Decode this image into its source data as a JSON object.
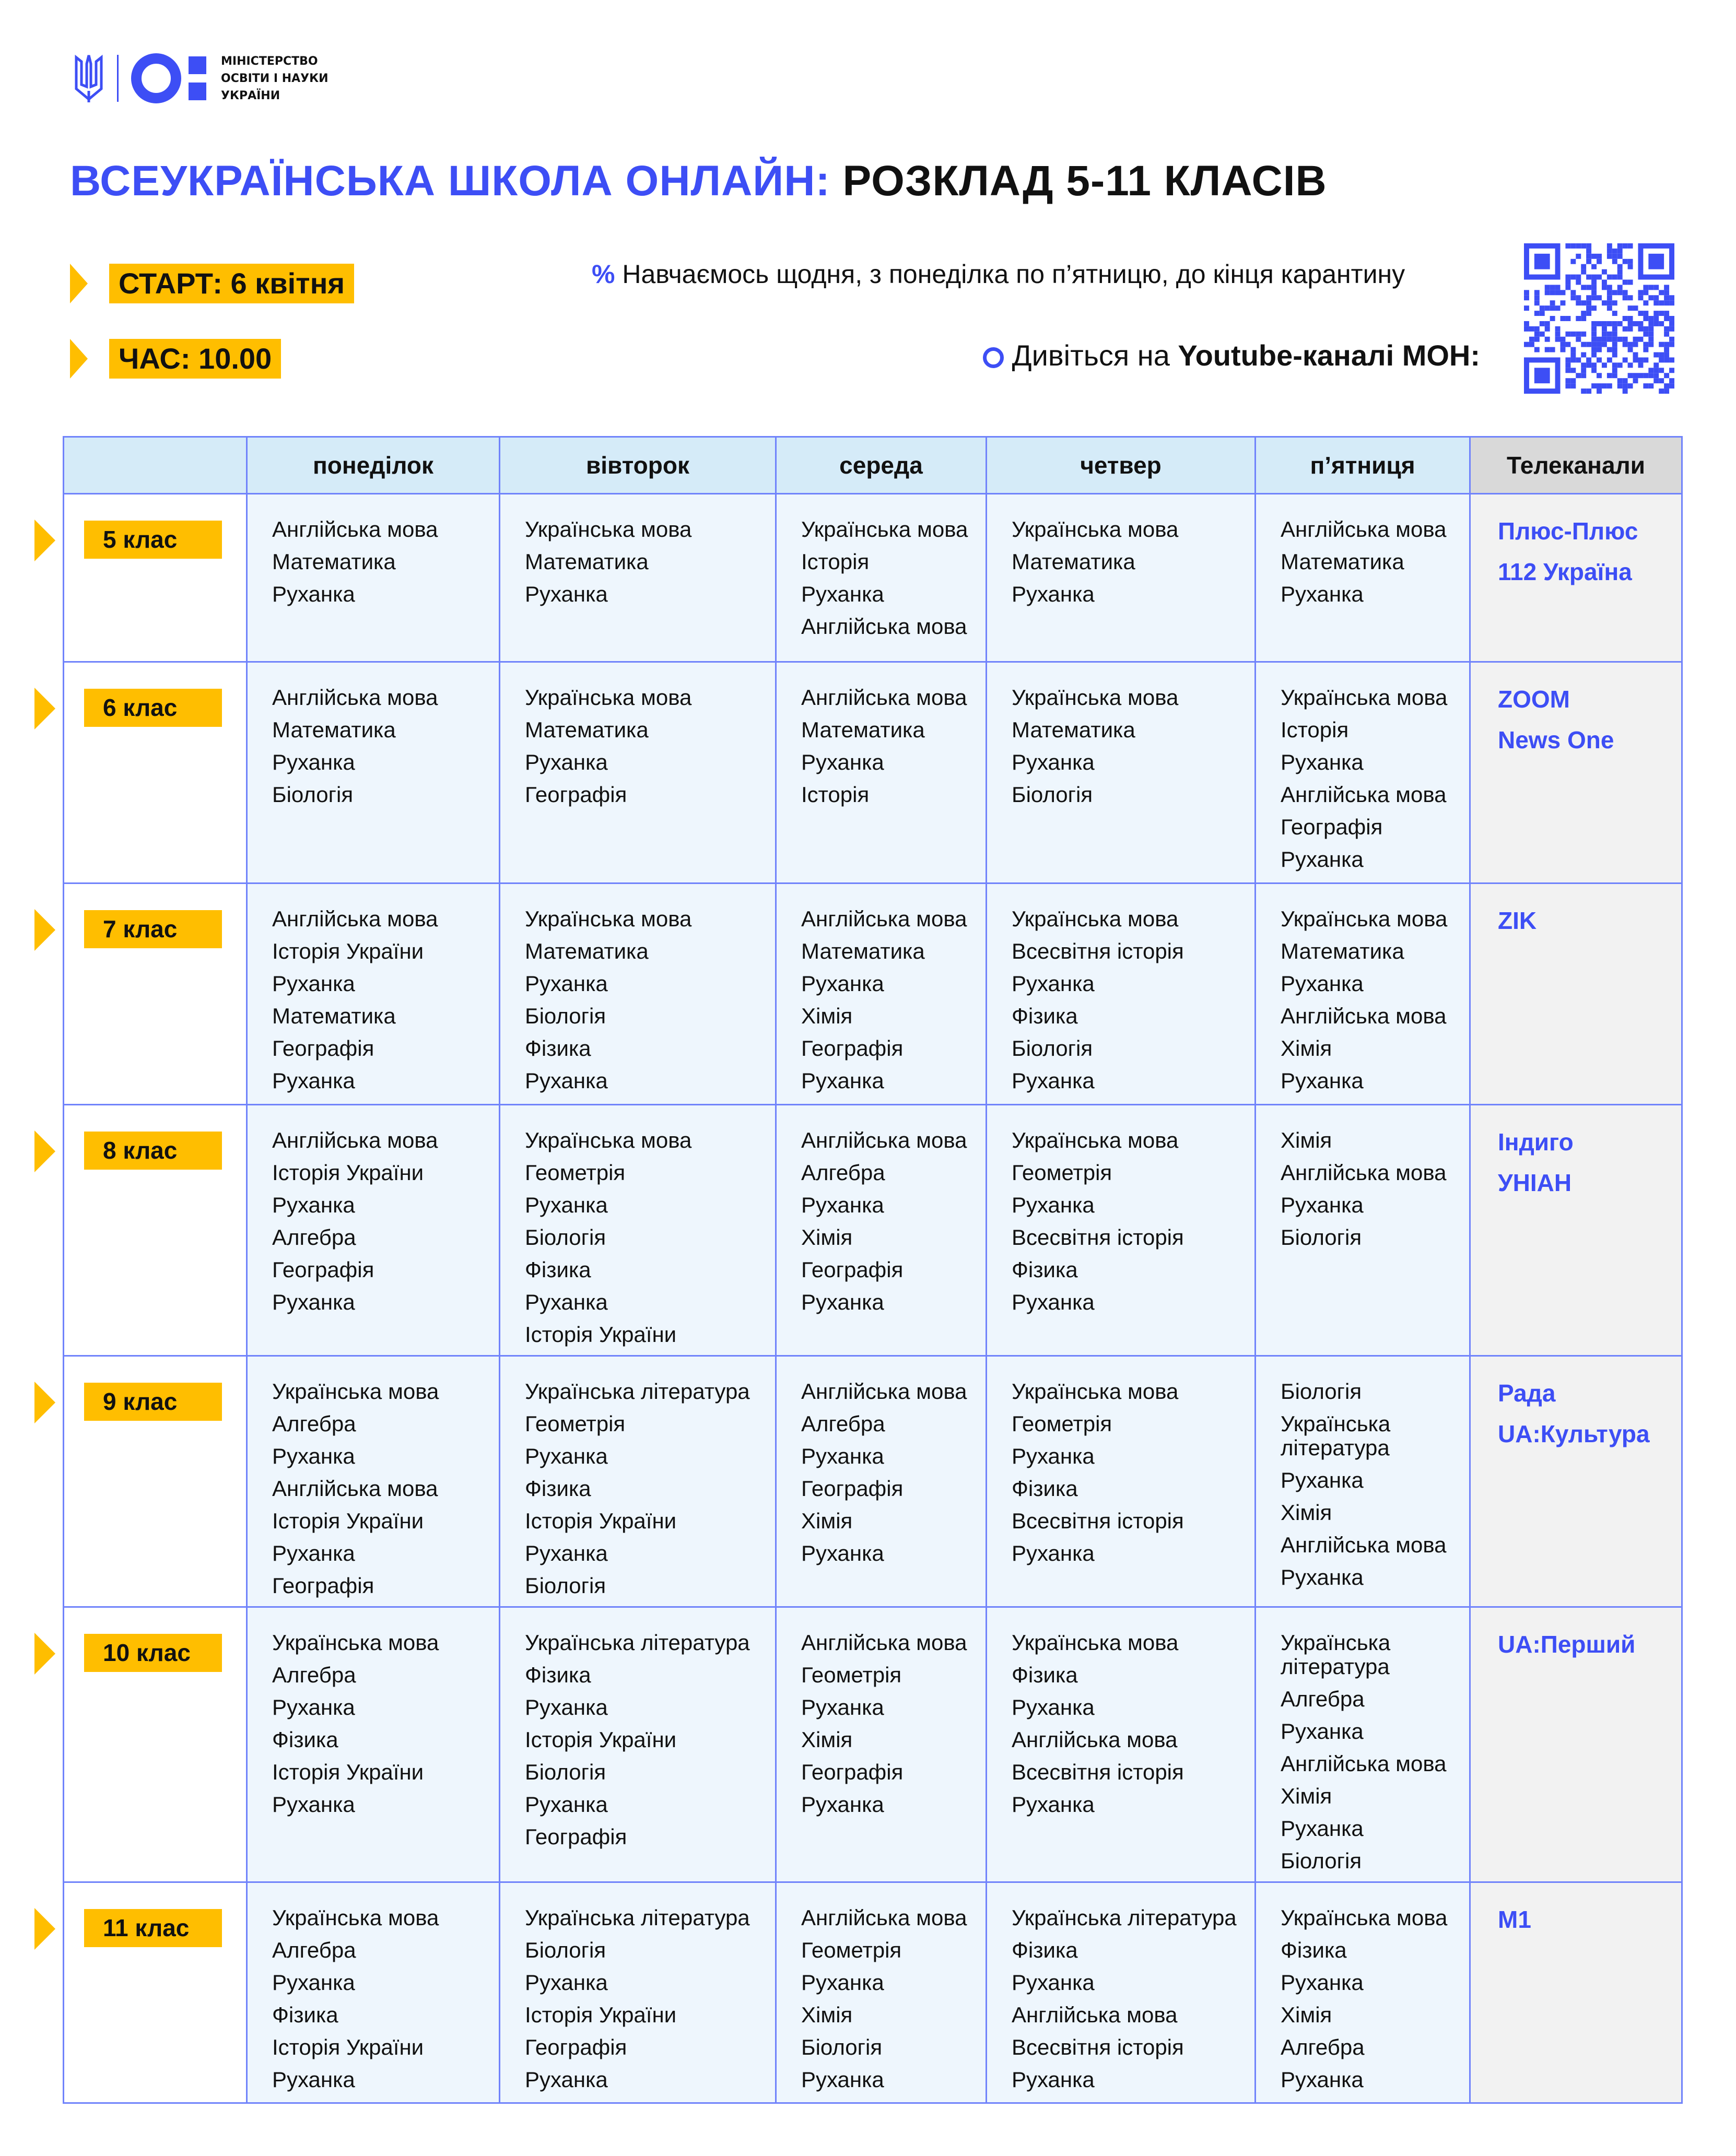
{
  "colors": {
    "accent": "#3d4ef5",
    "highlight": "#ffbe00",
    "border": "#7083fb",
    "header_bg": "#d5ebf8",
    "cell_bg": "#eef6fd",
    "channels_bg": "#f2f2f2"
  },
  "logo": {
    "line1": "МІНІСТЕРСТВО",
    "line2": "ОСВІТИ І НАУКИ",
    "line3": "УКРАЇНИ"
  },
  "title": {
    "blue": "ВСЕУКРАЇНСЬКА ШКОЛА ОНЛАЙН:",
    "black": " РОЗКЛАД 5-11 КЛАСІВ"
  },
  "start": "СТАРТ: 6 квітня",
  "time": "ЧАС: 10.00",
  "info": {
    "daily_icon": "percent-icon",
    "daily": "Навчаємось щодня, з понеділка по п’ятницю, до кінця карантину",
    "watch_icon": "circle-icon",
    "watch_prefix": "Дивіться на ",
    "watch_bold": "Youtube-каналі МОН:"
  },
  "table": {
    "headers": [
      "",
      "понеділок",
      "вівторок",
      "середа",
      "четвер",
      "п’ятниця",
      "Телеканали"
    ],
    "rows": [
      {
        "grade": "5 клас",
        "days": [
          [
            "Англійська мова",
            "Математика",
            "Руханка"
          ],
          [
            "Українська мова",
            "Математика",
            "Руханка"
          ],
          [
            "Українська мова",
            "Історія",
            "Руханка",
            "Англійська мова"
          ],
          [
            "Українська мова",
            "Математика",
            "Руханка"
          ],
          [
            "Англійська мова",
            "Математика",
            "Руханка"
          ]
        ],
        "channels": [
          "Плюс-Плюс",
          "112 Україна"
        ]
      },
      {
        "grade": "6 клас",
        "days": [
          [
            "Англійська мова",
            "Математика",
            "Руханка",
            "Біологія"
          ],
          [
            "Українська мова",
            "Математика",
            "Руханка",
            "Географія"
          ],
          [
            "Англійська мова",
            "Математика",
            "Руханка",
            "Історія"
          ],
          [
            "Українська мова",
            "Математика",
            "Руханка",
            "Біологія"
          ],
          [
            "Українська мова",
            "Історія",
            "Руханка",
            "Англійська мова",
            "Географія",
            "Руханка"
          ]
        ],
        "channels": [
          "ZOOM",
          "News One"
        ]
      },
      {
        "grade": "7 клас",
        "days": [
          [
            "Англійська мова",
            "Історія України",
            "Руханка",
            "Математика",
            "Географія",
            "Руханка"
          ],
          [
            "Українська мова",
            "Математика",
            "Руханка",
            "Біологія",
            "Фізика",
            "Руханка"
          ],
          [
            "Англійська мова",
            "Математика",
            "Руханка",
            "Хімія",
            "Географія",
            "Руханка"
          ],
          [
            "Українська мова",
            "Всесвітня історія",
            "Руханка",
            "Фізика",
            "Біологія",
            "Руханка"
          ],
          [
            "Українська мова",
            "Математика",
            "Руханка",
            "Англійська мова",
            "Хімія",
            "Руханка"
          ]
        ],
        "channels": [
          "ZIK"
        ]
      },
      {
        "grade": "8 клас",
        "days": [
          [
            "Англійська мова",
            "Історія України",
            "Руханка",
            "Алгебра",
            "Географія",
            "Руханка"
          ],
          [
            "Українська мова",
            "Геометрія",
            "Руханка",
            "Біологія",
            "Фізика",
            "Руханка",
            "Історія України"
          ],
          [
            "Англійська мова",
            "Алгебра",
            "Руханка",
            "Хімія",
            "Географія",
            "Руханка"
          ],
          [
            "Українська мова",
            "Геометрія",
            "Руханка",
            "Всесвітня історія",
            "Фізика",
            "Руханка"
          ],
          [
            "Хімія",
            "Англійська мова",
            "Руханка",
            "Біологія"
          ]
        ],
        "channels": [
          "Індиго",
          "УНІАН"
        ]
      },
      {
        "grade": "9 клас",
        "days": [
          [
            "Українська мова",
            "Алгебра",
            "Руханка",
            "Англійська мова",
            "Історія України",
            "Руханка",
            "Географія"
          ],
          [
            "Українська література",
            "Геометрія",
            "Руханка",
            "Фізика",
            "Історія України",
            "Руханка",
            "Біологія"
          ],
          [
            "Англійська мова",
            "Алгебра",
            "Руханка",
            "Географія",
            "Хімія",
            "Руханка"
          ],
          [
            "Українська мова",
            "Геометрія",
            "Руханка",
            "Фізика",
            "Всесвітня історія",
            "Руханка"
          ],
          [
            "Біологія",
            "Українська література",
            "Руханка",
            "Хімія",
            "Англійська мова",
            "Руханка"
          ]
        ],
        "channels": [
          "Рада",
          "UA:Культура"
        ]
      },
      {
        "grade": "10 клас",
        "days": [
          [
            "Українська мова",
            "Алгебра",
            "Руханка",
            "Фізика",
            "Історія України",
            "Руханка"
          ],
          [
            "Українська література",
            "Фізика",
            "Руханка",
            "Історія України",
            "Біологія",
            "Руханка",
            "Географія"
          ],
          [
            "Англійська мова",
            "Геометрія",
            "Руханка",
            "Хімія",
            "Географія",
            "Руханка"
          ],
          [
            "Українська мова",
            "Фізика",
            "Руханка",
            "Англійська мова",
            "Всесвітня історія",
            "Руханка"
          ],
          [
            "Українська література",
            "Алгебра",
            "Руханка",
            "Англійська мова",
            "Хімія",
            "Руханка",
            "Біологія"
          ]
        ],
        "channels": [
          "UA:Перший"
        ]
      },
      {
        "grade": "11 клас",
        "days": [
          [
            "Українська мова",
            "Алгебра",
            "Руханка",
            "Фізика",
            "Історія України",
            "Руханка"
          ],
          [
            "Українська література",
            "Біологія",
            "Руханка",
            "Історія України",
            "Географія",
            "Руханка"
          ],
          [
            "Англійська мова",
            "Геометрія",
            "Руханка",
            "Хімія",
            "Біологія",
            "Руханка"
          ],
          [
            "Українська література",
            "Фізика",
            "Руханка",
            "Англійська мова",
            "Всесвітня історія",
            "Руханка"
          ],
          [
            "Українська мова",
            "Фізика",
            "Руханка",
            "Хімія",
            "Алгебра",
            "Руханка"
          ]
        ],
        "channels": [
          "M1"
        ]
      }
    ]
  }
}
